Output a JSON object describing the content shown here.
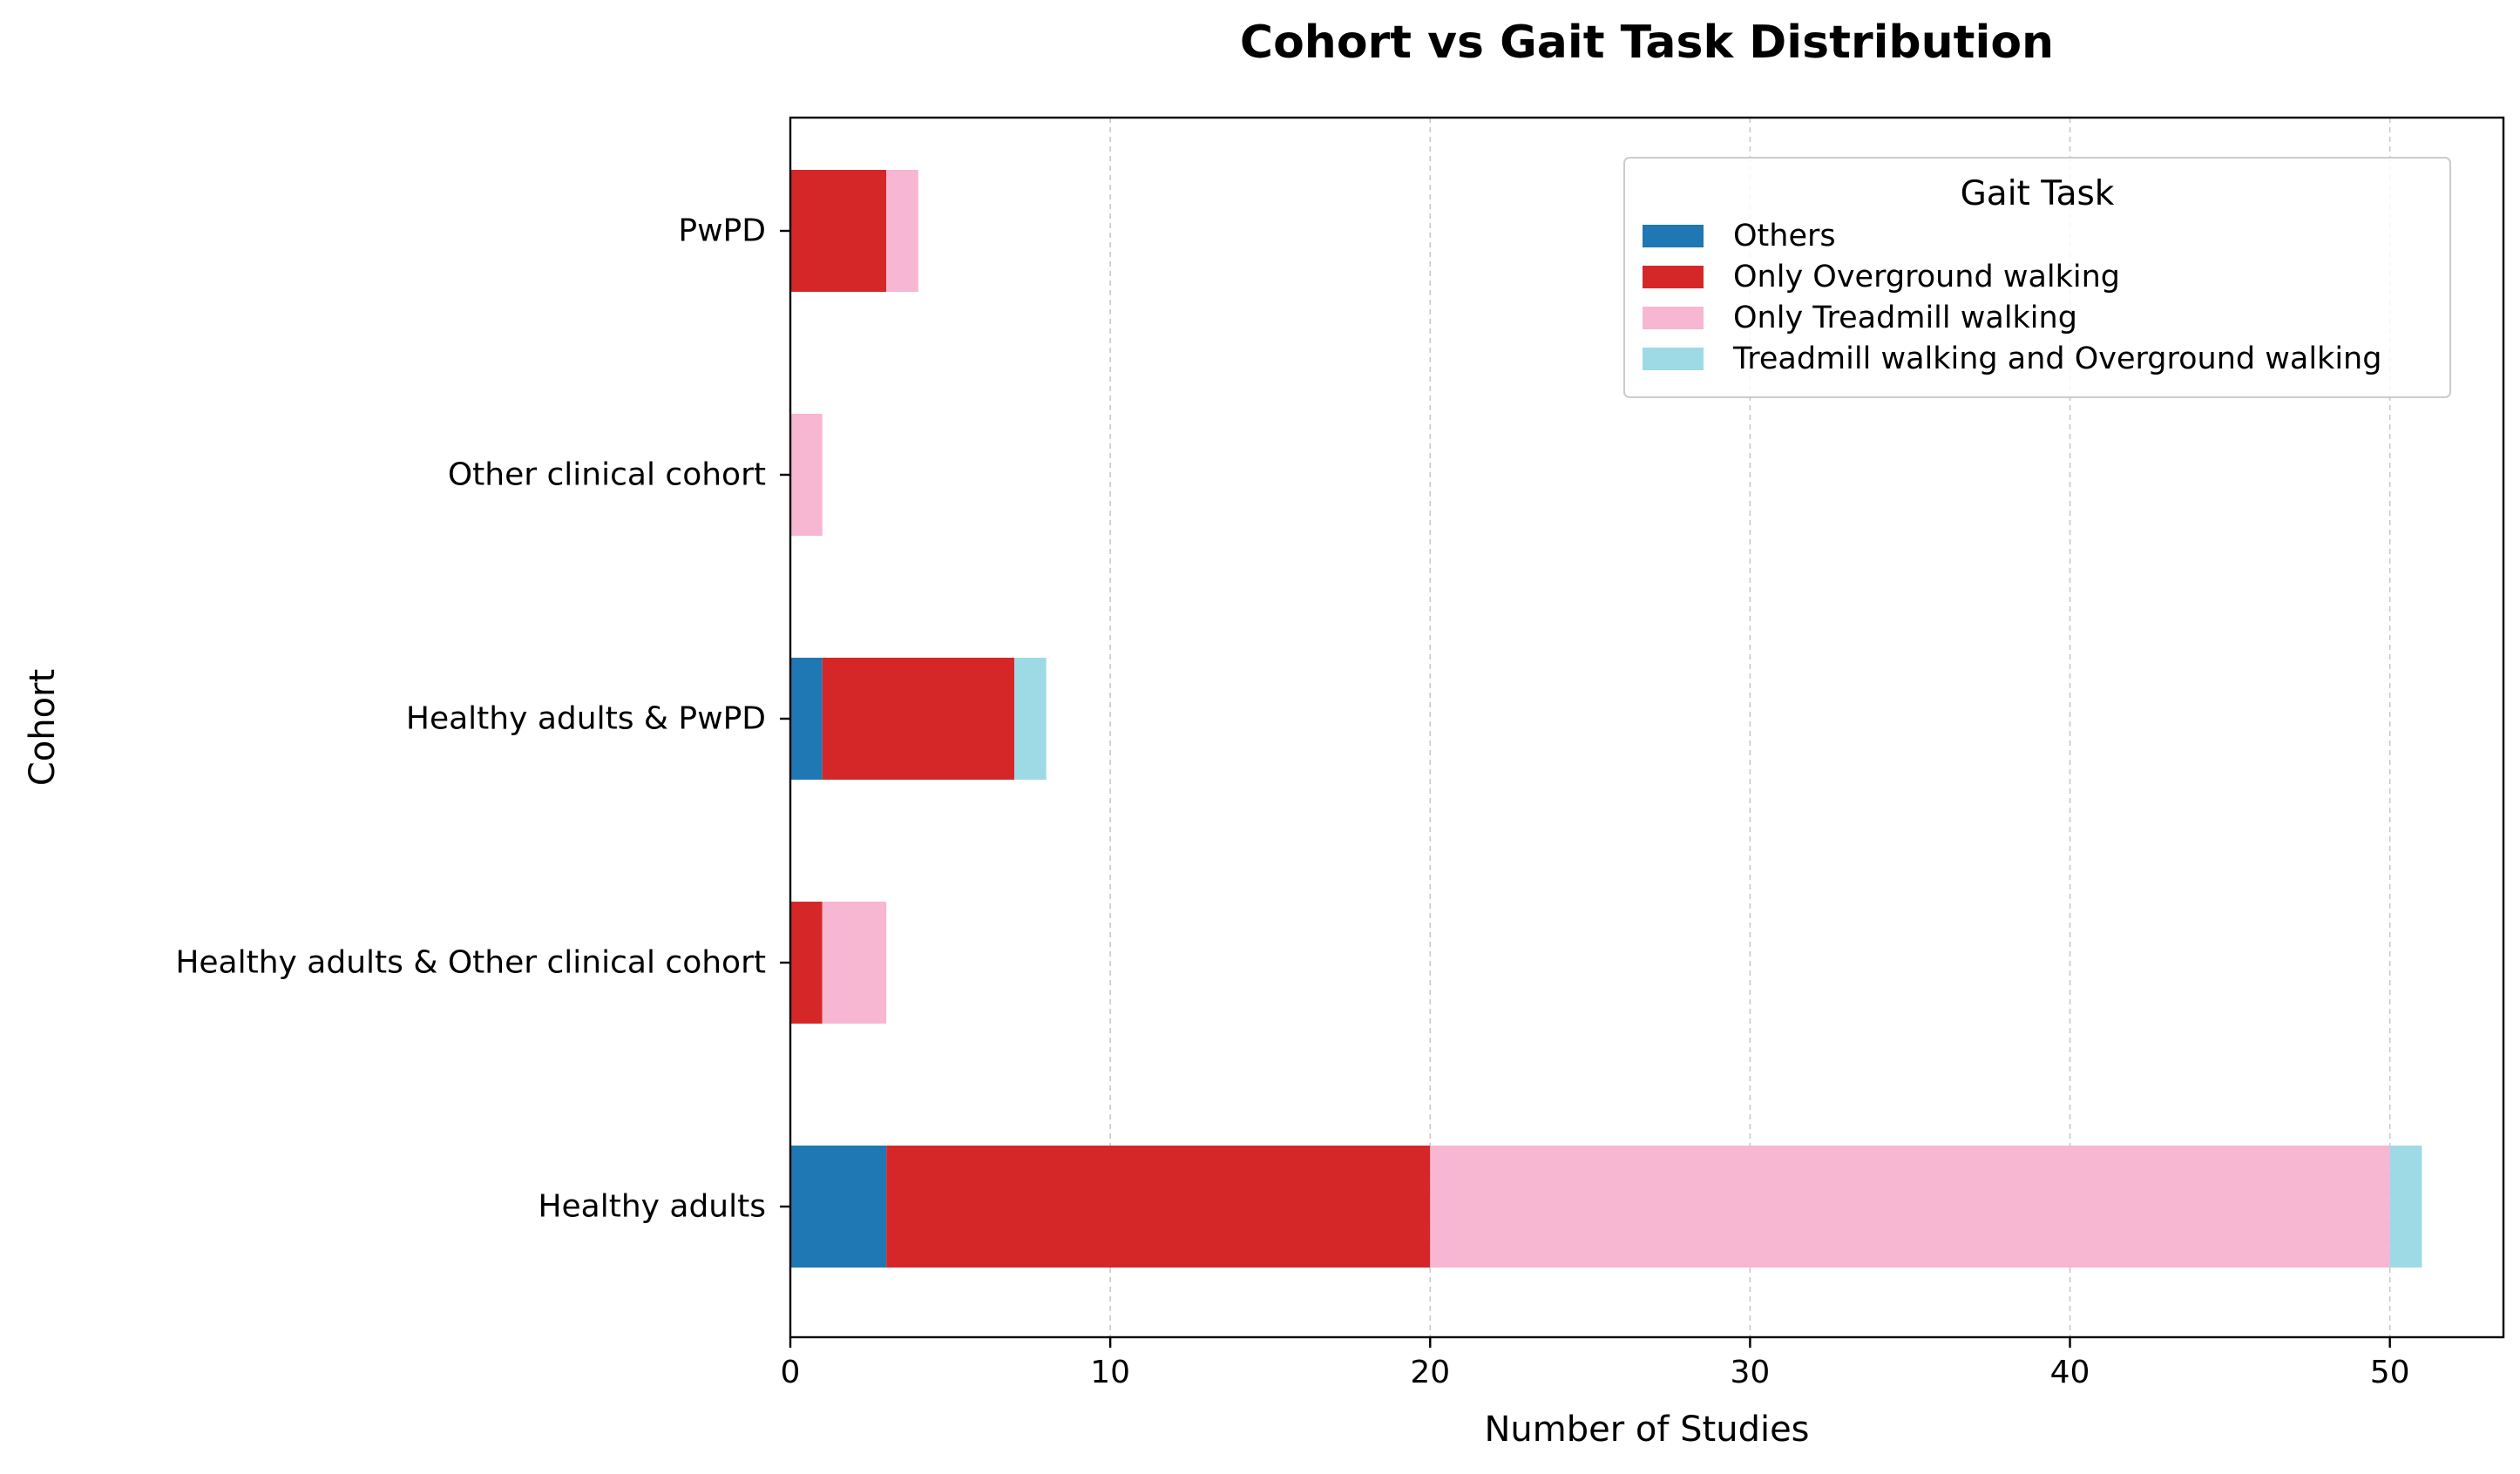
{
  "chart_data": {
    "type": "bar",
    "orientation": "horizontal",
    "stacked": true,
    "title": "Cohort vs Gait Task Distribution",
    "xlabel": "Number of Studies",
    "ylabel": "Cohort",
    "xlim": [
      0,
      53.55
    ],
    "xticks": [
      0,
      10,
      20,
      30,
      40,
      50
    ],
    "grid": "x-dashed",
    "legend_title": "Gait Task",
    "legend_position": "top-right",
    "categories": [
      "Healthy adults",
      "Healthy adults & Other clinical cohort",
      "Healthy adults & PwPD",
      "Other clinical cohort",
      "PwPD"
    ],
    "series": [
      {
        "name": "Others",
        "color": "#1f77b4",
        "values": [
          3,
          0,
          1,
          0,
          0
        ]
      },
      {
        "name": "Only Overground walking",
        "color": "#d62728",
        "values": [
          17,
          1,
          6,
          0,
          3
        ]
      },
      {
        "name": "Only Treadmill walking",
        "color": "#f7b6d2",
        "values": [
          30,
          2,
          0,
          1,
          1
        ]
      },
      {
        "name": "Treadmill walking and Overground walking",
        "color": "#9edae5",
        "values": [
          1,
          0,
          1,
          0,
          0
        ]
      }
    ]
  }
}
